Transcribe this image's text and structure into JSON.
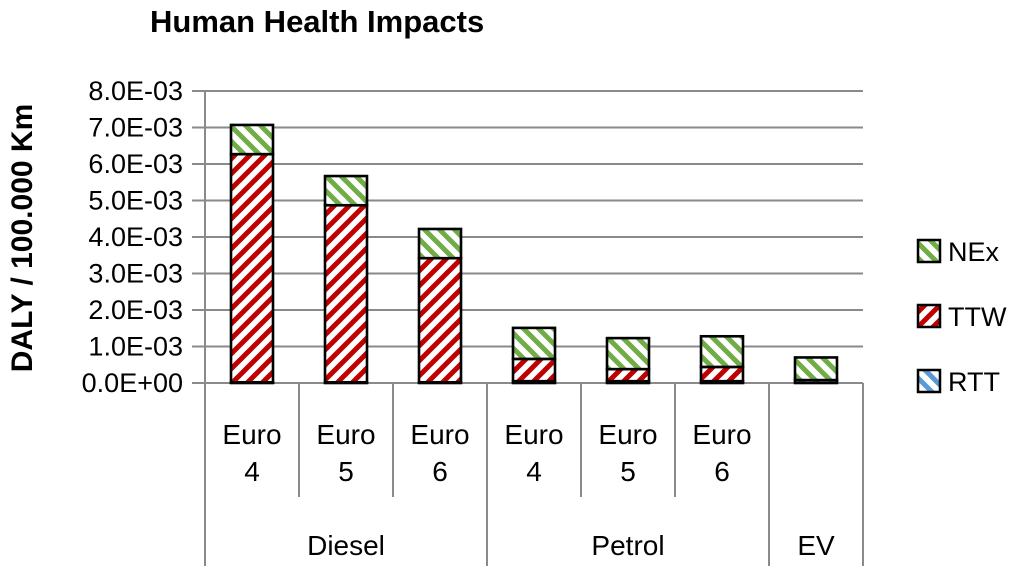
{
  "page": {
    "background": "#FFFFFF"
  },
  "chart_data": {
    "type": "bar",
    "stacked": true,
    "title": "Human Health Impacts",
    "ylabel": "DALY / 100.000 Km",
    "xlabel": "",
    "grid": true,
    "ylim": [
      0,
      0.008
    ],
    "ytick_step": 0.001,
    "ytick_labels": [
      "0.0E+00",
      "1.0E-03",
      "2.0E-03",
      "3.0E-03",
      "4.0E-03",
      "5.0E-03",
      "6.0E-03",
      "7.0E-03",
      "8.0E-03"
    ],
    "categories": [
      "Euro 4",
      "Euro 5",
      "Euro 6",
      "Euro 4",
      "Euro 5",
      "Euro 6",
      ""
    ],
    "groups": [
      {
        "label": "Diesel",
        "from": 0,
        "to": 2
      },
      {
        "label": "Petrol",
        "from": 3,
        "to": 5
      },
      {
        "label": "EV",
        "from": 6,
        "to": 6
      }
    ],
    "series": [
      {
        "name": "RTT",
        "color": "#5B9BD5",
        "hatch": "\\",
        "values": [
          2e-05,
          2e-05,
          2e-05,
          5e-05,
          5e-05,
          5e-05,
          8e-05
        ]
      },
      {
        "name": "TTW",
        "color": "#C00000",
        "hatch": "/",
        "values": [
          0.00625,
          0.00485,
          0.0034,
          0.00061,
          0.00033,
          0.00039,
          0
        ]
      },
      {
        "name": "NEx",
        "color": "#70AD47",
        "hatch": "\\",
        "values": [
          0.0008,
          0.0008,
          0.0008,
          0.00085,
          0.00085,
          0.00084,
          0.00062
        ]
      }
    ],
    "legend": {
      "position": "right",
      "items": [
        "NEx",
        "TTW",
        "RTT"
      ]
    },
    "colors": {
      "grid": "#8A8A8A",
      "axis": "#8A8A8A",
      "bar_border": "#000000",
      "text": "#000000",
      "background": "#FFFFFF"
    }
  }
}
